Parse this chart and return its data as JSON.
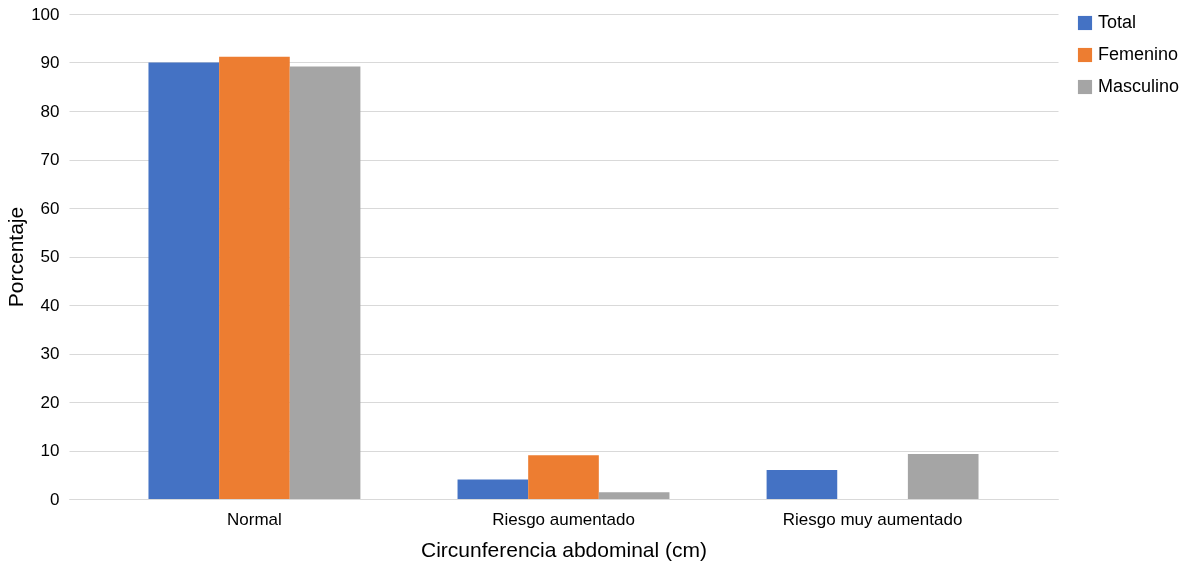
{
  "chart_data": {
    "type": "bar",
    "xlabel": "Circunferencia abdominal (cm)",
    "ylabel": "Porcentaje",
    "categories": [
      "Normal",
      "Riesgo aumentado",
      "Riesgo muy aumentado"
    ],
    "series": [
      {
        "name": "Total",
        "color": "#4472c4",
        "values": [
          90.0,
          4.0,
          6.0
        ]
      },
      {
        "name": "Femenino",
        "color": "#ed7d31",
        "values": [
          91.2,
          9.0,
          0
        ]
      },
      {
        "name": "Masculino",
        "color": "#a5a5a5",
        "values": [
          89.2,
          1.4,
          9.3
        ]
      }
    ],
    "ylim": [
      0,
      100
    ],
    "yticks": [
      0,
      10,
      20,
      30,
      40,
      50,
      60,
      70,
      80,
      90,
      100
    ],
    "grid": "y",
    "legend": "right"
  }
}
